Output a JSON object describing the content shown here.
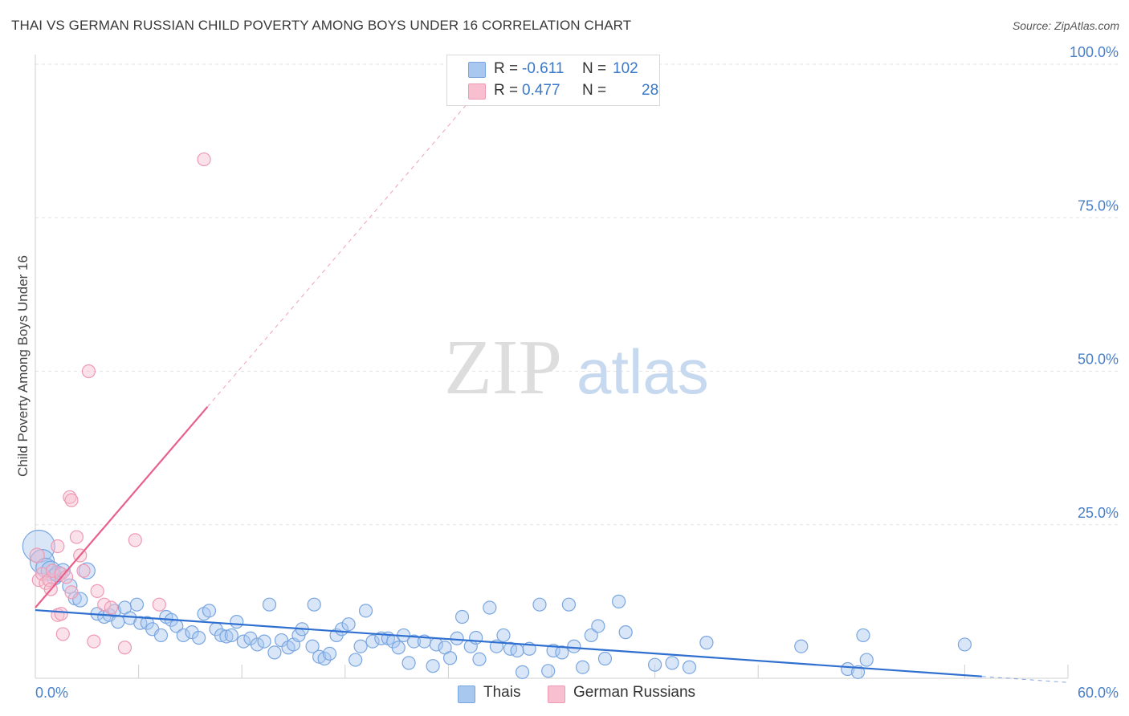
{
  "title": "THAI VS GERMAN RUSSIAN CHILD POVERTY AMONG BOYS UNDER 16 CORRELATION CHART",
  "source": "Source: ZipAtlas.com",
  "watermark": {
    "zip": "ZIP",
    "atlas": "atlas"
  },
  "legend": {
    "rows": [
      {
        "r_label": "R =",
        "r_value": "-0.611",
        "n_label": "N =",
        "n_value": "102"
      },
      {
        "r_label": "R =",
        "r_value": "0.477",
        "n_label": "N =",
        "n_value": "28"
      }
    ]
  },
  "colors": {
    "thai_fill": "#a9c8f0",
    "thai_stroke": "#7aa6e0",
    "thai_line": "#2f6fd0",
    "gr_fill": "#f7bfd0",
    "gr_stroke": "#ee9ab4",
    "gr_line": "#e8608a",
    "grid": "#e2e2e2",
    "tick_label": "#4a7fc8",
    "axis_label": "#444444"
  },
  "chart_data": {
    "type": "scatter",
    "title": "THAI VS GERMAN RUSSIAN CHILD POVERTY AMONG BOYS UNDER 16 CORRELATION CHART",
    "xlabel": "",
    "ylabel": "Child Poverty Among Boys Under 16",
    "xlim": [
      0,
      60
    ],
    "ylim": [
      0,
      100
    ],
    "x_tick_labels": [
      "0.0%",
      "60.0%"
    ],
    "y_ticks": [
      25,
      50,
      75,
      100
    ],
    "y_tick_labels": [
      "25.0%",
      "50.0%",
      "75.0%",
      "100.0%"
    ],
    "grid": true,
    "legend_position": "bottom-center",
    "series": [
      {
        "name": "Thais",
        "r": -0.611,
        "n": 102,
        "trend": {
          "x0": 0,
          "y0": 11.1,
          "x1": 55,
          "y1": 0.3,
          "dashed_to_x": 60
        },
        "points": [
          [
            0.2,
            21.5,
            20
          ],
          [
            0.4,
            19,
            15
          ],
          [
            0.6,
            18,
            12
          ],
          [
            0.9,
            17.5,
            12
          ],
          [
            1.1,
            16.5,
            10
          ],
          [
            1.3,
            17,
            10
          ],
          [
            1.6,
            17.5,
            9
          ],
          [
            2.0,
            15,
            9
          ],
          [
            2.3,
            13,
            8
          ],
          [
            2.6,
            12.8,
            9
          ],
          [
            3.0,
            17.5,
            10
          ],
          [
            3.6,
            10.5,
            8
          ],
          [
            4.0,
            10,
            8
          ],
          [
            4.3,
            10.3,
            8
          ],
          [
            4.6,
            11,
            8
          ],
          [
            4.8,
            9.2,
            8
          ],
          [
            5.2,
            11.5,
            8
          ],
          [
            5.5,
            9.8,
            8
          ],
          [
            5.9,
            12,
            8
          ],
          [
            6.1,
            9,
            8
          ],
          [
            6.5,
            9,
            8
          ],
          [
            6.8,
            8,
            8
          ],
          [
            7.3,
            7,
            8
          ],
          [
            7.6,
            10,
            8
          ],
          [
            7.9,
            9.5,
            8
          ],
          [
            8.2,
            8.5,
            8
          ],
          [
            8.6,
            7,
            8
          ],
          [
            9.1,
            7.5,
            8
          ],
          [
            9.5,
            6.6,
            8
          ],
          [
            9.8,
            10.5,
            8
          ],
          [
            10.1,
            11,
            8
          ],
          [
            10.5,
            8,
            8
          ],
          [
            10.8,
            7,
            8
          ],
          [
            11.1,
            6.8,
            8
          ],
          [
            11.4,
            7,
            8
          ],
          [
            11.7,
            9.2,
            8
          ],
          [
            12.1,
            6,
            8
          ],
          [
            12.5,
            6.5,
            8
          ],
          [
            12.9,
            5.5,
            8
          ],
          [
            13.3,
            6,
            8
          ],
          [
            13.6,
            12,
            8
          ],
          [
            13.9,
            4.2,
            8
          ],
          [
            14.3,
            6.2,
            8
          ],
          [
            14.7,
            5,
            8
          ],
          [
            15.0,
            5.5,
            8
          ],
          [
            15.3,
            7,
            8
          ],
          [
            15.5,
            8,
            8
          ],
          [
            16.1,
            5.2,
            8
          ],
          [
            16.2,
            12,
            8
          ],
          [
            16.5,
            3.5,
            8
          ],
          [
            16.8,
            3.2,
            8
          ],
          [
            17.1,
            4,
            8
          ],
          [
            17.5,
            7,
            8
          ],
          [
            17.8,
            8,
            8
          ],
          [
            18.2,
            8.8,
            8
          ],
          [
            18.6,
            3,
            8
          ],
          [
            18.9,
            5.2,
            8
          ],
          [
            19.2,
            11,
            8
          ],
          [
            19.6,
            6,
            8
          ],
          [
            20.1,
            6.5,
            8
          ],
          [
            20.5,
            6.5,
            8
          ],
          [
            20.8,
            6,
            8
          ],
          [
            21.1,
            5,
            8
          ],
          [
            21.4,
            7,
            8
          ],
          [
            21.7,
            2.5,
            8
          ],
          [
            22.0,
            6,
            8
          ],
          [
            22.6,
            6,
            8
          ],
          [
            23.1,
            2,
            8
          ],
          [
            23.3,
            5.5,
            8
          ],
          [
            23.8,
            5,
            8
          ],
          [
            24.1,
            3.3,
            8
          ],
          [
            24.5,
            6.5,
            8
          ],
          [
            24.8,
            10,
            8
          ],
          [
            25.3,
            5.2,
            8
          ],
          [
            25.6,
            6.6,
            8
          ],
          [
            25.8,
            3.1,
            8
          ],
          [
            26.4,
            11.5,
            8
          ],
          [
            26.8,
            5.2,
            8
          ],
          [
            27.2,
            7,
            8
          ],
          [
            27.6,
            4.8,
            8
          ],
          [
            28.0,
            4.5,
            8
          ],
          [
            28.3,
            1,
            8
          ],
          [
            28.7,
            4.8,
            8
          ],
          [
            29.3,
            12,
            8
          ],
          [
            29.8,
            1.2,
            8
          ],
          [
            30.1,
            4.5,
            8
          ],
          [
            30.6,
            4.2,
            8
          ],
          [
            31.0,
            12,
            8
          ],
          [
            31.3,
            5.2,
            8
          ],
          [
            31.8,
            1.8,
            8
          ],
          [
            32.3,
            7,
            8
          ],
          [
            32.7,
            8.5,
            8
          ],
          [
            33.1,
            3.2,
            8
          ],
          [
            33.9,
            12.5,
            8
          ],
          [
            34.3,
            7.5,
            8
          ],
          [
            36.0,
            2.2,
            8
          ],
          [
            37.0,
            2.5,
            8
          ],
          [
            38.0,
            1.8,
            8
          ],
          [
            39.0,
            5.8,
            8
          ],
          [
            44.5,
            5.2,
            8
          ],
          [
            47.2,
            1.5,
            8
          ],
          [
            47.8,
            1,
            8
          ],
          [
            48.1,
            7,
            8
          ],
          [
            48.3,
            3,
            8
          ],
          [
            54.0,
            5.5,
            8
          ]
        ]
      },
      {
        "name": "German Russians",
        "r": 0.477,
        "n": 28,
        "trend": {
          "x0": 0,
          "y0": 11.5,
          "x1": 10,
          "y1": 44.2,
          "dashed_to_x": 25.5
        },
        "points": [
          [
            0.1,
            20,
            9
          ],
          [
            0.2,
            16,
            8
          ],
          [
            0.4,
            17,
            8
          ],
          [
            0.6,
            15.5,
            8
          ],
          [
            0.8,
            16,
            8
          ],
          [
            0.9,
            14.5,
            8
          ],
          [
            1.0,
            17.5,
            8
          ],
          [
            1.3,
            10.3,
            8
          ],
          [
            1.3,
            21.5,
            8
          ],
          [
            1.5,
            10.5,
            8
          ],
          [
            1.5,
            17,
            8
          ],
          [
            1.6,
            7.2,
            8
          ],
          [
            1.8,
            16.5,
            8
          ],
          [
            2.0,
            29.5,
            8
          ],
          [
            2.1,
            14,
            8
          ],
          [
            2.1,
            29,
            8
          ],
          [
            2.4,
            23,
            8
          ],
          [
            2.6,
            20,
            8
          ],
          [
            2.8,
            17.5,
            8
          ],
          [
            3.1,
            50,
            8
          ],
          [
            3.4,
            6,
            8
          ],
          [
            3.6,
            14.2,
            8
          ],
          [
            4.0,
            12,
            8
          ],
          [
            4.4,
            11.5,
            8
          ],
          [
            5.2,
            5,
            8
          ],
          [
            5.8,
            22.5,
            8
          ],
          [
            7.2,
            12,
            8
          ],
          [
            9.8,
            84.5,
            8
          ]
        ]
      }
    ]
  },
  "bottom_legend": [
    {
      "label": "Thais"
    },
    {
      "label": "German Russians"
    }
  ]
}
